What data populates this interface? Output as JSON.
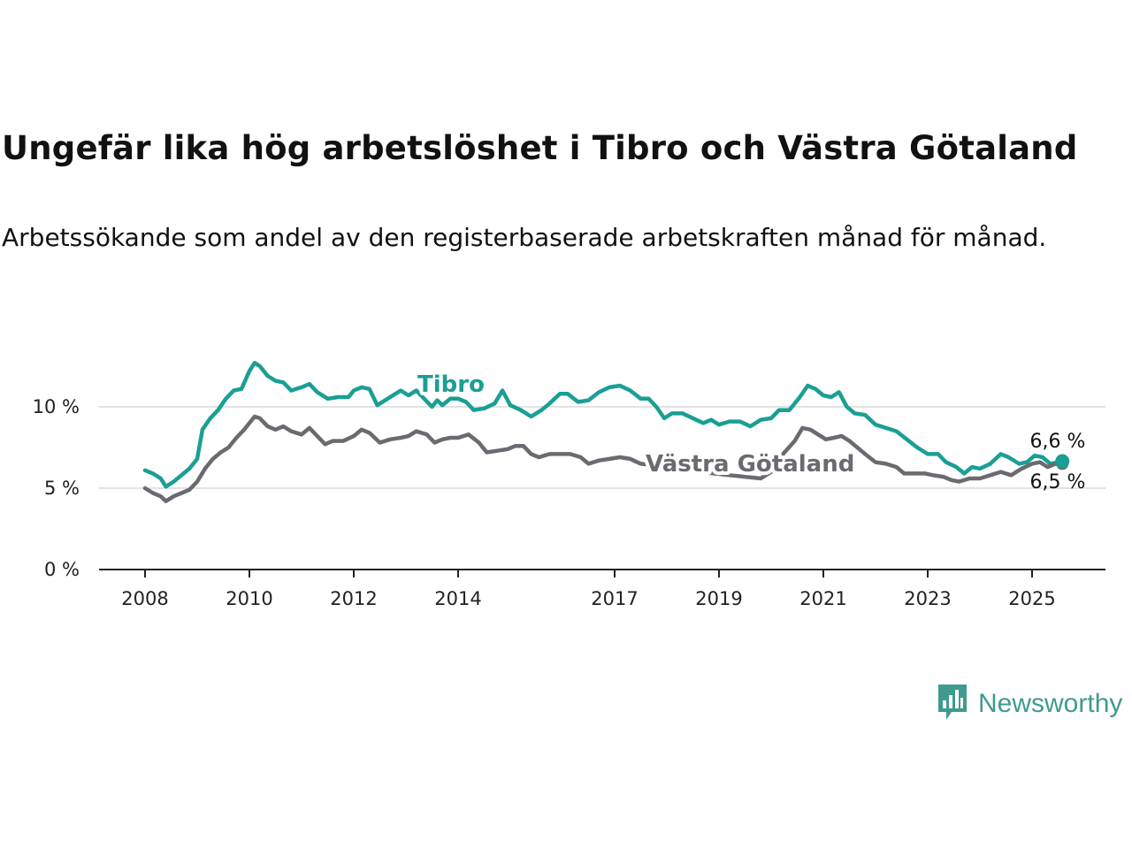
{
  "header": {
    "title": "Ungefär lika hög arbetslöshet i Tibro och Västra Götaland",
    "subtitle": "Arbetssökande som andel av den registerbaserade arbetskraften månad för månad."
  },
  "brand": {
    "name": "Newsworthy",
    "icon": "newsworthy-logo-icon",
    "color": "#3f9a90"
  },
  "chart_data": {
    "type": "line",
    "x_unit": "year",
    "xlim": [
      2008,
      2025.6
    ],
    "ylim": [
      0,
      12
    ],
    "y_ticks": [
      {
        "value": 0,
        "label": "0 %"
      },
      {
        "value": 5,
        "label": "5 %"
      },
      {
        "value": 10,
        "label": "10 %"
      }
    ],
    "x_ticks": [
      {
        "value": 2008,
        "label": "2008"
      },
      {
        "value": 2010,
        "label": "2010"
      },
      {
        "value": 2012,
        "label": "2012"
      },
      {
        "value": 2014,
        "label": "2014"
      },
      {
        "value": 2017,
        "label": "2017"
      },
      {
        "value": 2019,
        "label": "2019"
      },
      {
        "value": 2021,
        "label": "2021"
      },
      {
        "value": 2023,
        "label": "2023"
      },
      {
        "value": 2025,
        "label": "2025"
      }
    ],
    "grid": true,
    "series": [
      {
        "name": "Tibro",
        "color": "#1a9f94",
        "end_label": "6,6 %",
        "points": [
          [
            2008.0,
            6.1
          ],
          [
            2008.15,
            5.9
          ],
          [
            2008.3,
            5.6
          ],
          [
            2008.4,
            5.1
          ],
          [
            2008.55,
            5.4
          ],
          [
            2008.7,
            5.8
          ],
          [
            2008.85,
            6.2
          ],
          [
            2009.0,
            6.8
          ],
          [
            2009.1,
            8.6
          ],
          [
            2009.25,
            9.3
          ],
          [
            2009.4,
            9.8
          ],
          [
            2009.55,
            10.5
          ],
          [
            2009.7,
            11.0
          ],
          [
            2009.85,
            11.1
          ],
          [
            2010.0,
            12.2
          ],
          [
            2010.1,
            12.7
          ],
          [
            2010.2,
            12.5
          ],
          [
            2010.35,
            11.9
          ],
          [
            2010.5,
            11.6
          ],
          [
            2010.65,
            11.5
          ],
          [
            2010.8,
            11.0
          ],
          [
            2011.0,
            11.2
          ],
          [
            2011.15,
            11.4
          ],
          [
            2011.3,
            10.9
          ],
          [
            2011.5,
            10.5
          ],
          [
            2011.7,
            10.6
          ],
          [
            2011.9,
            10.6
          ],
          [
            2012.0,
            11.0
          ],
          [
            2012.15,
            11.2
          ],
          [
            2012.3,
            11.1
          ],
          [
            2012.45,
            10.1
          ],
          [
            2012.6,
            10.4
          ],
          [
            2012.75,
            10.7
          ],
          [
            2012.9,
            11.0
          ],
          [
            2013.05,
            10.7
          ],
          [
            2013.2,
            11.0
          ],
          [
            2013.35,
            10.5
          ],
          [
            2013.5,
            10.0
          ],
          [
            2013.6,
            10.4
          ],
          [
            2013.7,
            10.1
          ],
          [
            2013.85,
            10.5
          ],
          [
            2014.0,
            10.5
          ],
          [
            2014.15,
            10.3
          ],
          [
            2014.3,
            9.8
          ],
          [
            2014.5,
            9.9
          ],
          [
            2014.7,
            10.2
          ],
          [
            2014.85,
            11.0
          ],
          [
            2015.0,
            10.1
          ],
          [
            2015.2,
            9.8
          ],
          [
            2015.4,
            9.4
          ],
          [
            2015.6,
            9.8
          ],
          [
            2015.75,
            10.2
          ],
          [
            2015.95,
            10.8
          ],
          [
            2016.1,
            10.8
          ],
          [
            2016.3,
            10.3
          ],
          [
            2016.5,
            10.4
          ],
          [
            2016.7,
            10.9
          ],
          [
            2016.9,
            11.2
          ],
          [
            2017.1,
            11.3
          ],
          [
            2017.3,
            11.0
          ],
          [
            2017.5,
            10.5
          ],
          [
            2017.65,
            10.5
          ],
          [
            2017.8,
            10.0
          ],
          [
            2017.95,
            9.3
          ],
          [
            2018.1,
            9.6
          ],
          [
            2018.3,
            9.6
          ],
          [
            2018.5,
            9.3
          ],
          [
            2018.7,
            9.0
          ],
          [
            2018.85,
            9.2
          ],
          [
            2019.0,
            8.9
          ],
          [
            2019.2,
            9.1
          ],
          [
            2019.4,
            9.1
          ],
          [
            2019.6,
            8.8
          ],
          [
            2019.8,
            9.2
          ],
          [
            2020.0,
            9.3
          ],
          [
            2020.15,
            9.8
          ],
          [
            2020.35,
            9.8
          ],
          [
            2020.55,
            10.6
          ],
          [
            2020.7,
            11.3
          ],
          [
            2020.85,
            11.1
          ],
          [
            2021.0,
            10.7
          ],
          [
            2021.15,
            10.6
          ],
          [
            2021.3,
            10.9
          ],
          [
            2021.45,
            10.0
          ],
          [
            2021.6,
            9.6
          ],
          [
            2021.8,
            9.5
          ],
          [
            2022.0,
            8.9
          ],
          [
            2022.2,
            8.7
          ],
          [
            2022.4,
            8.5
          ],
          [
            2022.6,
            8.0
          ],
          [
            2022.8,
            7.5
          ],
          [
            2023.0,
            7.1
          ],
          [
            2023.2,
            7.1
          ],
          [
            2023.35,
            6.6
          ],
          [
            2023.55,
            6.3
          ],
          [
            2023.7,
            5.9
          ],
          [
            2023.85,
            6.3
          ],
          [
            2024.0,
            6.2
          ],
          [
            2024.2,
            6.5
          ],
          [
            2024.4,
            7.1
          ],
          [
            2024.55,
            6.9
          ],
          [
            2024.75,
            6.5
          ],
          [
            2024.9,
            6.6
          ],
          [
            2025.05,
            7.0
          ],
          [
            2025.2,
            6.9
          ],
          [
            2025.35,
            6.5
          ],
          [
            2025.5,
            6.6
          ],
          [
            2025.58,
            6.6
          ]
        ]
      },
      {
        "name": "Västra Götaland",
        "color": "#6b6a70",
        "end_label": "6,5 %",
        "points": [
          [
            2008.0,
            5.0
          ],
          [
            2008.15,
            4.7
          ],
          [
            2008.3,
            4.5
          ],
          [
            2008.4,
            4.2
          ],
          [
            2008.55,
            4.5
          ],
          [
            2008.7,
            4.7
          ],
          [
            2008.85,
            4.9
          ],
          [
            2009.0,
            5.4
          ],
          [
            2009.15,
            6.2
          ],
          [
            2009.3,
            6.8
          ],
          [
            2009.45,
            7.2
          ],
          [
            2009.6,
            7.5
          ],
          [
            2009.75,
            8.1
          ],
          [
            2009.9,
            8.6
          ],
          [
            2010.0,
            9.0
          ],
          [
            2010.1,
            9.4
          ],
          [
            2010.2,
            9.3
          ],
          [
            2010.35,
            8.8
          ],
          [
            2010.5,
            8.6
          ],
          [
            2010.65,
            8.8
          ],
          [
            2010.8,
            8.5
          ],
          [
            2011.0,
            8.3
          ],
          [
            2011.15,
            8.7
          ],
          [
            2011.3,
            8.2
          ],
          [
            2011.45,
            7.7
          ],
          [
            2011.6,
            7.9
          ],
          [
            2011.8,
            7.9
          ],
          [
            2012.0,
            8.2
          ],
          [
            2012.15,
            8.6
          ],
          [
            2012.3,
            8.4
          ],
          [
            2012.5,
            7.8
          ],
          [
            2012.7,
            8.0
          ],
          [
            2012.9,
            8.1
          ],
          [
            2013.05,
            8.2
          ],
          [
            2013.2,
            8.5
          ],
          [
            2013.4,
            8.3
          ],
          [
            2013.55,
            7.8
          ],
          [
            2013.7,
            8.0
          ],
          [
            2013.85,
            8.1
          ],
          [
            2014.0,
            8.1
          ],
          [
            2014.2,
            8.3
          ],
          [
            2014.4,
            7.8
          ],
          [
            2014.55,
            7.2
          ],
          [
            2014.75,
            7.3
          ],
          [
            2014.95,
            7.4
          ],
          [
            2015.1,
            7.6
          ],
          [
            2015.25,
            7.6
          ],
          [
            2015.4,
            7.1
          ],
          [
            2015.55,
            6.9
          ],
          [
            2015.75,
            7.1
          ],
          [
            2015.95,
            7.1
          ],
          [
            2016.15,
            7.1
          ],
          [
            2016.35,
            6.9
          ],
          [
            2016.5,
            6.5
          ],
          [
            2016.7,
            6.7
          ],
          [
            2016.9,
            6.8
          ],
          [
            2017.1,
            6.9
          ],
          [
            2017.3,
            6.8
          ],
          [
            2017.5,
            6.5
          ],
          [
            2017.75,
            6.4
          ],
          [
            2018.0,
            6.3
          ],
          [
            2018.3,
            6.2
          ],
          [
            2018.6,
            6.0
          ],
          [
            2018.9,
            5.9
          ],
          [
            2019.2,
            5.8
          ],
          [
            2019.5,
            5.7
          ],
          [
            2019.8,
            5.6
          ],
          [
            2020.0,
            6.0
          ],
          [
            2020.2,
            7.0
          ],
          [
            2020.45,
            7.9
          ],
          [
            2020.6,
            8.7
          ],
          [
            2020.75,
            8.6
          ],
          [
            2020.9,
            8.3
          ],
          [
            2021.05,
            8.0
          ],
          [
            2021.2,
            8.1
          ],
          [
            2021.35,
            8.2
          ],
          [
            2021.5,
            7.9
          ],
          [
            2021.65,
            7.5
          ],
          [
            2021.8,
            7.1
          ],
          [
            2022.0,
            6.6
          ],
          [
            2022.2,
            6.5
          ],
          [
            2022.4,
            6.3
          ],
          [
            2022.55,
            5.9
          ],
          [
            2022.75,
            5.9
          ],
          [
            2022.95,
            5.9
          ],
          [
            2023.1,
            5.8
          ],
          [
            2023.3,
            5.7
          ],
          [
            2023.45,
            5.5
          ],
          [
            2023.6,
            5.4
          ],
          [
            2023.8,
            5.6
          ],
          [
            2024.0,
            5.6
          ],
          [
            2024.2,
            5.8
          ],
          [
            2024.4,
            6.0
          ],
          [
            2024.6,
            5.8
          ],
          [
            2024.8,
            6.2
          ],
          [
            2025.0,
            6.5
          ],
          [
            2025.15,
            6.6
          ],
          [
            2025.3,
            6.3
          ],
          [
            2025.45,
            6.5
          ],
          [
            2025.58,
            6.5
          ]
        ]
      }
    ]
  }
}
